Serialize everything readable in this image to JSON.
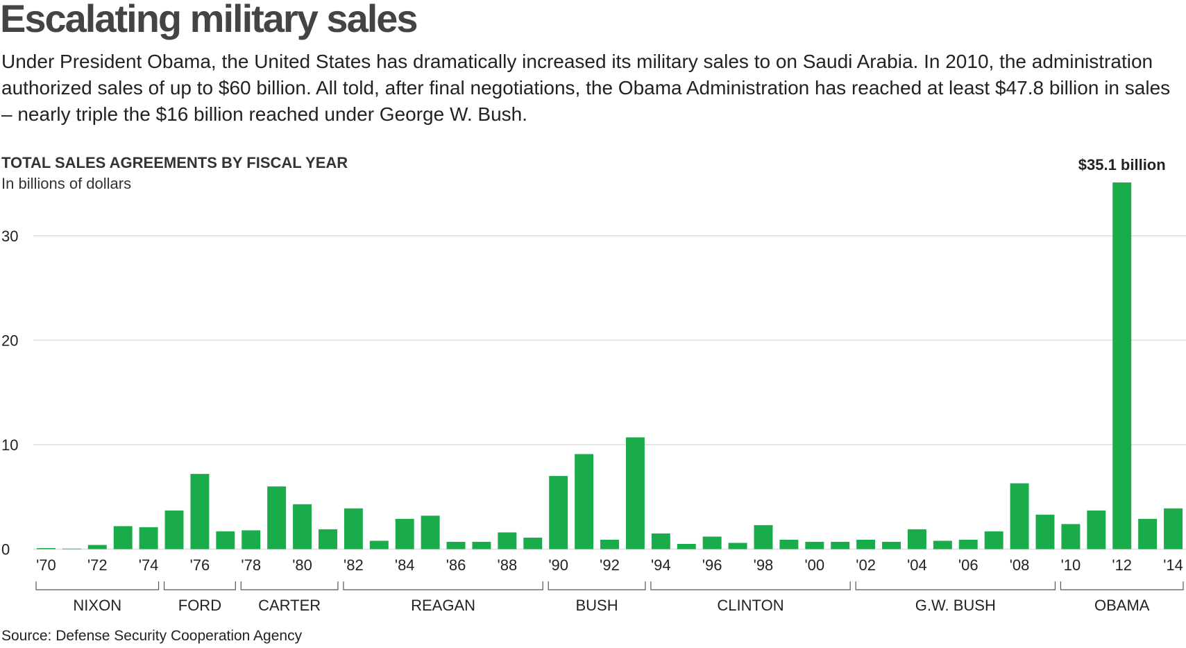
{
  "title": "Escalating military sales",
  "subtitle": "Under President Obama, the United States has dramatically increased its military sales to on Saudi Arabia. In 2010, the administration authorized sales of up to $60 billion. All told, after final negotiations, the Obama Administration has reached at least $47.8 billion in sales – nearly triple the $16 billion reached under George W. Bush.",
  "source": "Source: Defense Security Cooperation Agency",
  "colors": {
    "bar": "#1aab4b",
    "grid": "#dddddd",
    "axis": "#999999"
  },
  "chart_data": {
    "type": "bar",
    "title": "TOTAL SALES AGREEMENTS BY FISCAL YEAR",
    "ylabel": "In billions of dollars",
    "xlabel": "",
    "grid": true,
    "ylim": [
      0,
      35.1
    ],
    "yticks": [
      0,
      10,
      20,
      30
    ],
    "categories": [
      "'70",
      "'71",
      "'72",
      "'73",
      "'74",
      "'75",
      "'76",
      "'77",
      "'78",
      "'79",
      "'80",
      "'81",
      "'82",
      "'83",
      "'84",
      "'85",
      "'86",
      "'87",
      "'88",
      "'89",
      "'90",
      "'91",
      "'92",
      "'93",
      "'94",
      "'95",
      "'96",
      "'97",
      "'98",
      "'99",
      "'00",
      "'01",
      "'02",
      "'03",
      "'04",
      "'05",
      "'06",
      "'07",
      "'08",
      "'09",
      "'10",
      "'11",
      "'12",
      "'13",
      "'14"
    ],
    "values": [
      0.1,
      0.05,
      0.4,
      2.2,
      2.1,
      3.7,
      7.2,
      1.7,
      1.8,
      6.0,
      4.3,
      1.9,
      3.9,
      0.8,
      2.9,
      3.2,
      0.7,
      0.7,
      1.6,
      1.1,
      7.0,
      9.1,
      0.9,
      10.7,
      1.5,
      0.5,
      1.2,
      0.6,
      2.3,
      0.9,
      0.7,
      0.7,
      0.9,
      0.7,
      1.9,
      0.8,
      0.9,
      1.7,
      6.3,
      3.3,
      2.4,
      3.7,
      35.1,
      2.9,
      3.9
    ],
    "tick_labels": [
      "'70",
      "'72",
      "'74",
      "'76",
      "'78",
      "'80",
      "'82",
      "'84",
      "'86",
      "'88",
      "'90",
      "'92",
      "'94",
      "'96",
      "'98",
      "'00",
      "'02",
      "'04",
      "'06",
      "'08",
      "'10",
      "'12",
      "'14"
    ],
    "annotation": {
      "category": "'12",
      "text": "$35.1 billion"
    },
    "presidents": [
      {
        "name": "NIXON",
        "first": 0,
        "last": 4
      },
      {
        "name": "FORD",
        "first": 5,
        "last": 7
      },
      {
        "name": "CARTER",
        "first": 8,
        "last": 11
      },
      {
        "name": "REAGAN",
        "first": 12,
        "last": 19
      },
      {
        "name": "BUSH",
        "first": 20,
        "last": 23
      },
      {
        "name": "CLINTON",
        "first": 24,
        "last": 31
      },
      {
        "name": "G.W. BUSH",
        "first": 32,
        "last": 39
      },
      {
        "name": "OBAMA",
        "first": 40,
        "last": 44
      }
    ]
  }
}
